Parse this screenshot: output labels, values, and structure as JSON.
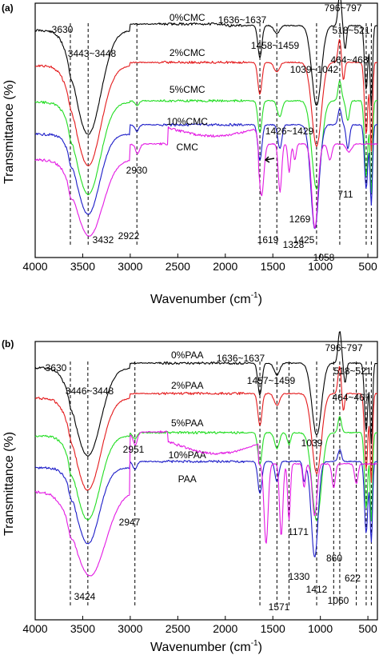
{
  "chart_data": [
    {
      "type": "line",
      "panel_label": "(a)",
      "xlabel": "Wavenumber (cm",
      "xlabel_sup": "-1",
      "xlabel_end": ")",
      "ylabel": "Transmittance (%)",
      "xlim": [
        4000,
        400
      ],
      "x_ticks": [
        4000,
        3500,
        3000,
        2500,
        2000,
        1500,
        1000,
        500
      ],
      "colors": {
        "black": "#000000",
        "red": "#e41a1c",
        "green": "#22dd22",
        "blue": "#1c1cc8",
        "magenta": "#e31ae3"
      },
      "series": [
        {
          "name": "0%CMC",
          "color": "#000000"
        },
        {
          "name": "2%CMC",
          "color": "#e41a1c"
        },
        {
          "name": "5%CMC",
          "color": "#22dd22"
        },
        {
          "name": "10%CMC",
          "color": "#1c1cc8"
        },
        {
          "name": "CMC",
          "color": "#e31ae3"
        }
      ],
      "vlines": [
        3630,
        3443,
        2930,
        1636,
        1458,
        1040,
        796,
        518,
        464
      ],
      "annotations": [
        "3630",
        "3443~3448",
        "1636~1637",
        "796~797",
        "518~521",
        "1458~1459",
        "1039~1042",
        "464~468",
        "1426~1429",
        "2930",
        "711",
        "1269",
        "2922",
        "1328",
        "3432",
        "1619",
        "1425",
        "1058"
      ]
    },
    {
      "type": "line",
      "panel_label": "(b)",
      "xlabel": "Wavenumber (cm",
      "xlabel_sup": "-1",
      "xlabel_end": ")",
      "ylabel": "Transmittance (%)",
      "xlim": [
        4000,
        400
      ],
      "x_ticks": [
        4000,
        3500,
        3000,
        2500,
        2000,
        1500,
        1000,
        500
      ],
      "series": [
        {
          "name": "0%PAA",
          "color": "#000000"
        },
        {
          "name": "2%PAA",
          "color": "#e41a1c"
        },
        {
          "name": "5%PAA",
          "color": "#22dd22"
        },
        {
          "name": "10%PAA",
          "color": "#1c1cc8"
        },
        {
          "name": "PAA",
          "color": "#e31ae3"
        }
      ],
      "vlines": [
        3630,
        3446,
        2951,
        1636,
        1457,
        1330,
        1039,
        796,
        518,
        464,
        860,
        622
      ],
      "annotations": [
        "3630",
        "3446~3448",
        "1636~1637",
        "796~797",
        "518~521",
        "1457~1459",
        "464~467",
        "1039",
        "2951",
        "1171",
        "2947",
        "860",
        "1330",
        "3424",
        "1412",
        "1060",
        "622",
        "1571"
      ]
    }
  ]
}
